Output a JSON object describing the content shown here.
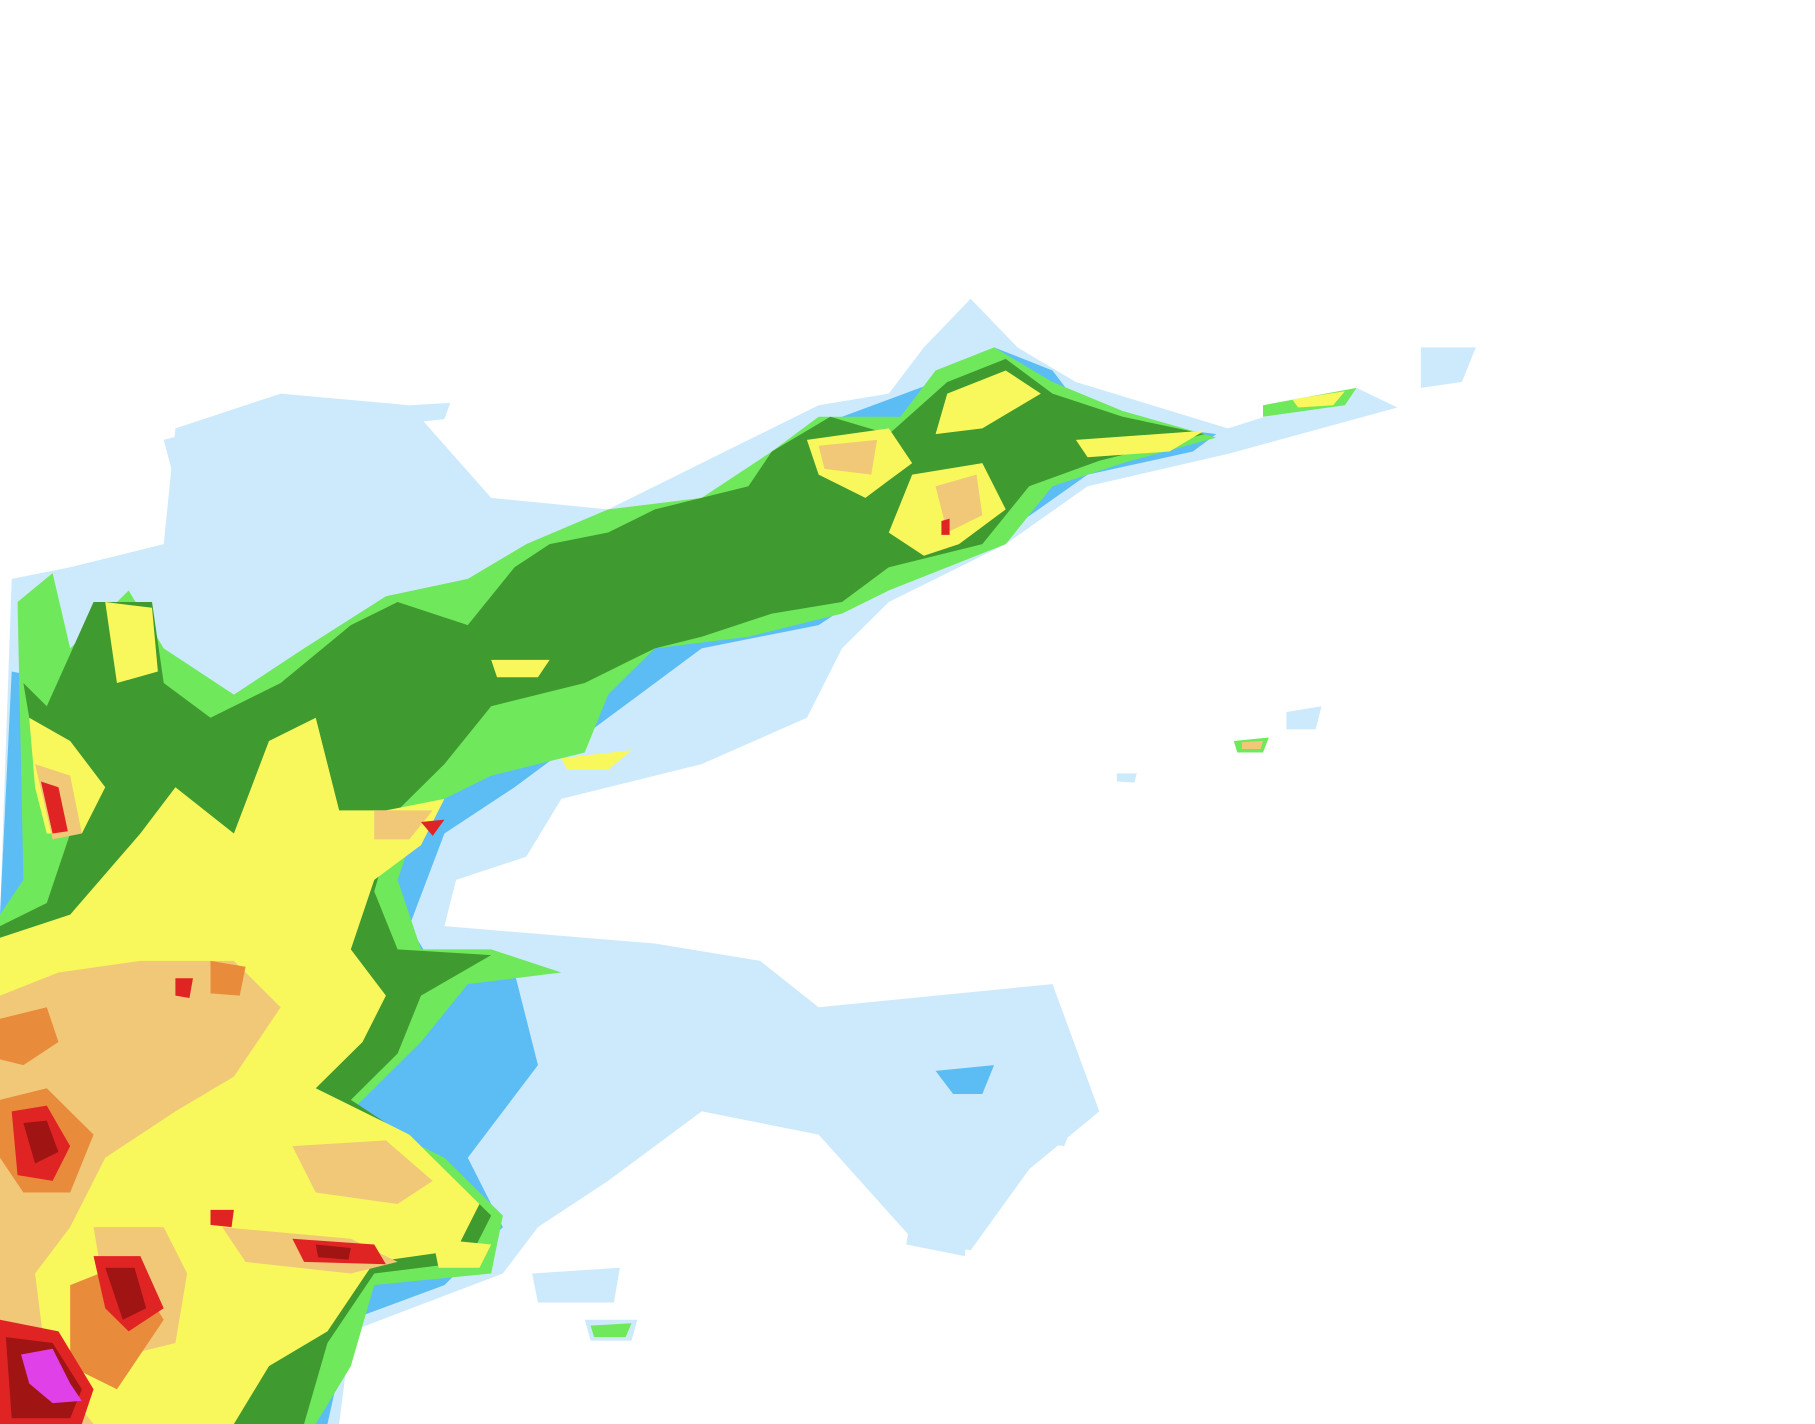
{
  "map": {
    "type": "precipitation-radar-overlay",
    "levels": [
      {
        "name": "very-light",
        "color": "#cdeafd"
      },
      {
        "name": "light",
        "color": "#5cbcf4"
      },
      {
        "name": "light-moderate",
        "color": "#70e85c"
      },
      {
        "name": "moderate",
        "color": "#3f9a2f"
      },
      {
        "name": "moderate-heavy",
        "color": "#f8f85c"
      },
      {
        "name": "heavy",
        "color": "#f0c878"
      },
      {
        "name": "very-heavy",
        "color": "#e88c3c"
      },
      {
        "name": "intense",
        "color": "#e02424"
      },
      {
        "name": "very-intense",
        "color": "#a01414"
      },
      {
        "name": "extreme",
        "color": "#e040e8"
      }
    ]
  }
}
